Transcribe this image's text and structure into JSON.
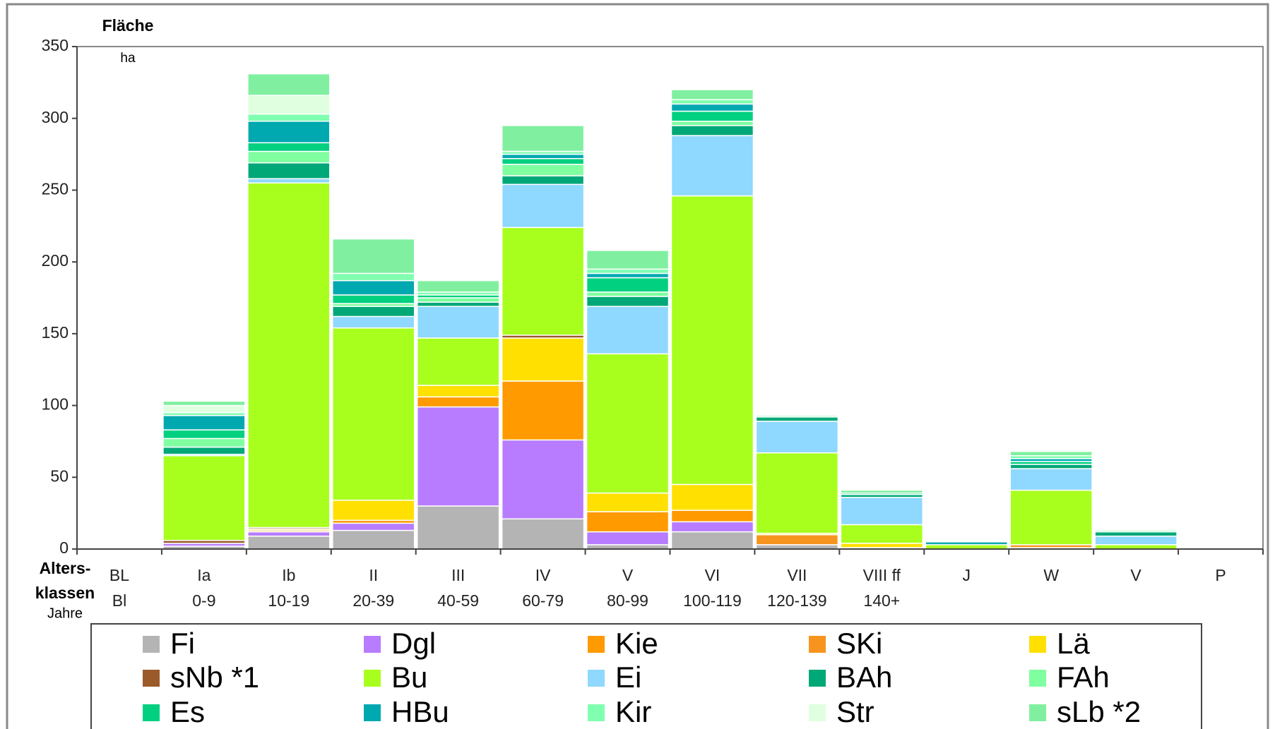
{
  "chart_data": {
    "type": "stacked_bar",
    "ylabel": "Fläche",
    "yunit": "ha",
    "xlabel": [
      "Alters-",
      "klassen"
    ],
    "xlabel2": "Jahre",
    "categories": [
      "BL",
      "Ia",
      "Ib",
      "II",
      "III",
      "IV",
      "V",
      "VI",
      "VII",
      "VIII ff",
      "J",
      "W",
      "V",
      "P"
    ],
    "year_ranges": [
      "Bl",
      "0-9",
      "10-19",
      "20-39",
      "40-59",
      "60-79",
      "80-99",
      "100-119",
      "120-139",
      "140+",
      null,
      null,
      null,
      null
    ],
    "ylim": [
      0,
      350
    ],
    "yticks": [
      0,
      50,
      100,
      150,
      200,
      250,
      300,
      350
    ],
    "series": [
      {
        "name": "Fi",
        "color": "#b4b4b4",
        "values": [
          0,
          2,
          9,
          13,
          30,
          21,
          3,
          12,
          3,
          1,
          0,
          1,
          0,
          0
        ]
      },
      {
        "name": "Dgl",
        "color": "#b77cff",
        "values": [
          0,
          2,
          3,
          5,
          69,
          55,
          9,
          7,
          0,
          0,
          0,
          0,
          0,
          0
        ]
      },
      {
        "name": "Kie",
        "color": "#ff9a00",
        "values": [
          0,
          0,
          1,
          2,
          7,
          41,
          14,
          8,
          0,
          0,
          0,
          0,
          0,
          0
        ]
      },
      {
        "name": "SKi",
        "color": "#f7941d",
        "values": [
          0,
          0,
          0,
          0,
          0,
          0,
          0,
          0,
          7,
          0,
          0,
          2,
          0,
          0
        ]
      },
      {
        "name": "Lä",
        "color": "#ffe000",
        "values": [
          0,
          0,
          1,
          14,
          8,
          30,
          13,
          18,
          1,
          3,
          0,
          0,
          0,
          0
        ]
      },
      {
        "name": "sNb *1",
        "color": "#9b5a2a",
        "values": [
          0,
          2,
          1,
          0,
          0,
          2,
          0,
          0,
          0,
          0,
          0,
          0,
          0,
          0
        ]
      },
      {
        "name": "Bu",
        "color": "#a8ff1e",
        "values": [
          0,
          59,
          240,
          120,
          33,
          75,
          97,
          201,
          56,
          13,
          3,
          38,
          3,
          0
        ]
      },
      {
        "name": "Ei",
        "color": "#8fd8ff",
        "values": [
          0,
          1,
          3,
          8,
          22,
          30,
          33,
          42,
          22,
          19,
          0,
          15,
          6,
          0
        ]
      },
      {
        "name": "BAh",
        "color": "#00a878",
        "values": [
          0,
          5,
          11,
          7,
          3,
          6,
          7,
          7,
          3,
          2,
          0,
          3,
          3,
          0
        ]
      },
      {
        "name": "FAh",
        "color": "#7fffa0",
        "values": [
          0,
          6,
          8,
          2,
          3,
          8,
          3,
          3,
          0,
          0,
          0,
          0,
          0,
          0
        ]
      },
      {
        "name": "Es",
        "color": "#00d080",
        "values": [
          0,
          6,
          6,
          6,
          2,
          4,
          10,
          7,
          0,
          1,
          0,
          2,
          0,
          0
        ]
      },
      {
        "name": "HBu",
        "color": "#00a8b0",
        "values": [
          0,
          10,
          15,
          10,
          0,
          3,
          3,
          5,
          0,
          0,
          2,
          2,
          0,
          0
        ]
      },
      {
        "name": "Kir",
        "color": "#80ffb0",
        "values": [
          0,
          2,
          5,
          5,
          2,
          2,
          3,
          3,
          0,
          0,
          0,
          2,
          0,
          0
        ]
      },
      {
        "name": "Str",
        "color": "#e0ffe0",
        "values": [
          0,
          5,
          13,
          0,
          0,
          0,
          0,
          0,
          0,
          0,
          0,
          0,
          0,
          0
        ]
      },
      {
        "name": "sLb *2",
        "color": "#80f0a0",
        "values": [
          0,
          3,
          15,
          24,
          8,
          18,
          13,
          7,
          1,
          2,
          0,
          3,
          1,
          0
        ]
      }
    ]
  }
}
